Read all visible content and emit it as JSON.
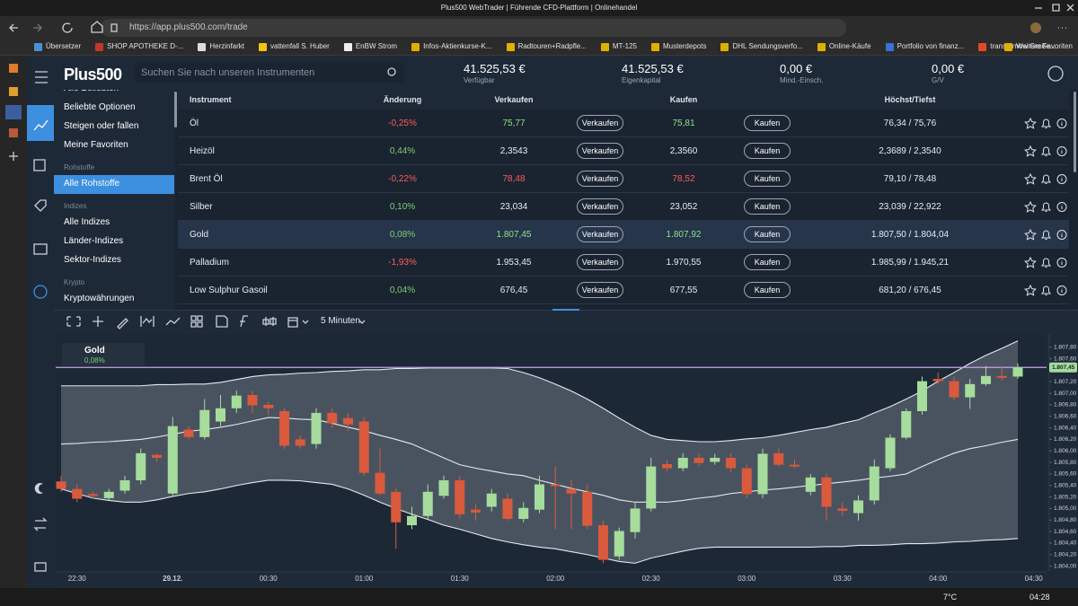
{
  "browser": {
    "tab_title": "Plus500 WebTrader | Führende CFD-Plattform | Onlinehandel",
    "url": "https://app.plus500.com/trade"
  },
  "bookmarks": [
    "Übersetzer",
    "SHOP APOTHEKE D-...",
    "Herzinfarkt",
    "vattenfall S. Huber",
    "EnBW Strom",
    "Infos-Aktienkurse-K...",
    "Radtouren+Radpfle...",
    "MT-125",
    "Musterdepots",
    "DHL Sendungsverfo...",
    "Online-Käufe",
    "Portfolio von finanz...",
    "transfernow Große...",
    "Weitere Favoriten"
  ],
  "app": {
    "logo": "Plus500",
    "search_placeholder": "Suchen Sie nach unseren Instrumenten",
    "stats": [
      {
        "value": "41.525,53 €",
        "label": "Verfügbar"
      },
      {
        "value": "41.525,53 €",
        "label": "Eigenkapital"
      },
      {
        "value": "0,00 €",
        "label": "Mind.-Einsch."
      },
      {
        "value": "0,00 €",
        "label": "G/V"
      }
    ]
  },
  "menu": {
    "top_items": [
      "Alle Beliebten",
      "Beliebte Optionen",
      "Steigen oder fallen",
      "Meine Favoriten"
    ],
    "groups": [
      {
        "title": "Rohstoffe",
        "items": [
          "Alle Rohstoffe"
        ]
      },
      {
        "title": "Indizes",
        "items": [
          "Alle Indizes",
          "Länder-Indizes",
          "Sektor-Indizes"
        ]
      },
      {
        "title": "Krypto",
        "items": [
          "Kryptowährungen"
        ]
      }
    ],
    "selected": "Alle Rohstoffe"
  },
  "table": {
    "columns": [
      "Instrument",
      "Änderung",
      "Verkaufen",
      "Kaufen",
      "Höchst/Tiefst"
    ],
    "sell_button": "Verkaufen",
    "buy_button": "Kaufen",
    "selected": "Gold",
    "up_color": "#7dcf74",
    "down_color": "#ff5c5c",
    "rows": [
      {
        "name": "Öl",
        "change": "-0,25%",
        "sell": "75,77",
        "buy": "75,81",
        "high_low": "76,34 / 75,76",
        "price_color": "#8fe388"
      },
      {
        "name": "Heizöl",
        "change": "0,44%",
        "sell": "2,3543",
        "buy": "2,3560",
        "high_low": "2,3689 / 2,3540",
        "price_color": "#e8ecf1"
      },
      {
        "name": "Brent Öl",
        "change": "-0,22%",
        "sell": "78,48",
        "buy": "78,52",
        "high_low": "79,10 / 78,48",
        "price_color": "#ff5c5c"
      },
      {
        "name": "Silber",
        "change": "0,10%",
        "sell": "23,034",
        "buy": "23,052",
        "high_low": "23,039 / 22,922",
        "price_color": "#e8ecf1"
      },
      {
        "name": "Gold",
        "change": "0,08%",
        "sell": "1.807,45",
        "buy": "1.807,92",
        "high_low": "1.807,50 / 1.804,04",
        "price_color": "#8fe388"
      },
      {
        "name": "Palladium",
        "change": "-1,93%",
        "sell": "1.953,45",
        "buy": "1.970,55",
        "high_low": "1.985,99 / 1.945,21",
        "price_color": "#e8ecf1"
      },
      {
        "name": "Low Sulphur Gasoil",
        "change": "0,04%",
        "sell": "676,45",
        "buy": "677,55",
        "high_low": "681,20 / 676,45",
        "price_color": "#e8ecf1"
      }
    ]
  },
  "chart_data": {
    "type": "candlestick",
    "title": "Gold",
    "subtitle": "0,08%",
    "interval": "5 Minuten",
    "up_color": "#a6dc9c",
    "down_color": "#d95a3c",
    "categories": [
      null,
      "22:30",
      null,
      null,
      null,
      null,
      null,
      "29.12.",
      null,
      null,
      null,
      null,
      null,
      "00:30",
      null,
      null,
      null,
      null,
      null,
      "01:00",
      null,
      null,
      null,
      null,
      null,
      "01:30",
      null,
      null,
      null,
      null,
      null,
      "02:00",
      null,
      null,
      null,
      null,
      null,
      "02:30",
      null,
      null,
      null,
      null,
      null,
      "03:00",
      null,
      null,
      null,
      null,
      null,
      "03:30",
      null,
      null,
      null,
      null,
      null,
      "04:00",
      null,
      null,
      null,
      null,
      null,
      "04:30"
    ],
    "open": [
      1805.47,
      1805.34,
      1805.25,
      1805.18,
      1805.31,
      1805.49,
      1805.93,
      1805.26,
      1806.37,
      1806.24,
      1806.51,
      1806.74,
      1806.97,
      1806.8,
      1806.69,
      1806.2,
      1806.12,
      1806.66,
      1806.57,
      1806.51,
      1805.62,
      1805.29,
      1804.71,
      1804.87,
      1805.22,
      1805.49,
      1804.98,
      1805.03,
      1805.17,
      1804.82,
      1804.98,
      1805.42,
      1805.34,
      1805.29,
      1804.71,
      1804.17,
      1804.59,
      1805.0,
      1805.77,
      1805.7,
      1805.88,
      1805.81,
      1805.88,
      1805.7,
      1805.25,
      1805.96,
      1805.76,
      1805.29,
      1805.54,
      1805.0,
      1804.92,
      1805.14,
      1805.7,
      1806.23,
      1806.69,
      1807.25,
      1807.21,
      1806.93,
      1807.16,
      1807.3,
      1807.29,
      null
    ],
    "high": [
      1805.57,
      1805.42,
      1805.29,
      1805.34,
      1805.57,
      1806.04,
      1805.96,
      1806.59,
      1806.43,
      1806.9,
      1806.97,
      1807.05,
      1807.05,
      1806.85,
      1806.74,
      1806.27,
      1806.74,
      1806.74,
      1806.66,
      1806.59,
      1806.04,
      1805.34,
      1805.03,
      1805.42,
      1805.57,
      1805.57,
      1805.07,
      1805.34,
      1805.26,
      1805.11,
      1805.57,
      1805.73,
      1805.49,
      1805.42,
      1804.79,
      1804.67,
      1805.11,
      1805.88,
      1805.85,
      1805.96,
      1805.96,
      1805.95,
      1805.96,
      1805.76,
      1806.04,
      1806.04,
      1805.85,
      1805.6,
      1805.6,
      1805.11,
      1805.23,
      1805.85,
      1806.29,
      1806.74,
      1807.29,
      1807.36,
      1807.29,
      1807.25,
      1807.47,
      1807.47,
      1807.52,
      null
    ],
    "low": [
      1805.29,
      1805.11,
      1805.17,
      1805.14,
      1805.26,
      1805.42,
      1805.81,
      1805.23,
      1806.2,
      1806.2,
      1806.43,
      1806.66,
      1806.66,
      1806.63,
      1806.04,
      1806.04,
      1806.04,
      1806.4,
      1806.35,
      1805.57,
      1805.23,
      1804.3,
      1804.64,
      1804.82,
      1805.17,
      1804.82,
      1804.79,
      1804.95,
      1804.79,
      1804.76,
      1804.92,
      1804.64,
      1804.64,
      1804.64,
      1804.05,
      1804.11,
      1804.48,
      1804.95,
      1805.65,
      1805.65,
      1805.73,
      1805.76,
      1805.63,
      1805.18,
      1805.18,
      1805.73,
      1805.7,
      1805.23,
      1804.79,
      1804.87,
      1804.79,
      1805.07,
      1805.65,
      1806.2,
      1806.63,
      1807.16,
      1806.88,
      1806.73,
      1807.13,
      1807.22,
      1807.25,
      null
    ],
    "close": [
      1805.34,
      1805.17,
      1805.22,
      1805.29,
      1805.49,
      1805.96,
      1805.88,
      1806.43,
      1806.24,
      1806.71,
      1806.74,
      1806.96,
      1806.79,
      1806.74,
      1806.09,
      1806.09,
      1806.66,
      1806.48,
      1806.46,
      1805.62,
      1805.26,
      1804.76,
      1804.87,
      1805.29,
      1805.49,
      1804.9,
      1804.93,
      1805.26,
      1804.82,
      1805.01,
      1805.42,
      1805.39,
      1805.26,
      1804.7,
      1804.11,
      1804.61,
      1805.0,
      1805.73,
      1805.7,
      1805.88,
      1805.79,
      1805.88,
      1805.7,
      1805.25,
      1805.95,
      1805.76,
      1805.73,
      1805.54,
      1805.03,
      1804.96,
      1805.14,
      1805.73,
      1806.23,
      1806.69,
      1807.21,
      1807.21,
      1806.93,
      1807.16,
      1807.3,
      1807.27,
      1807.45,
      null
    ],
    "bollinger": {
      "color": "#e6e9ee",
      "fill": "rgba(190,196,205,0.28)",
      "upper": [
        1807.13,
        1807.13,
        1807.13,
        1807.13,
        1807.13,
        1807.13,
        1807.15,
        1807.15,
        1807.16,
        1807.16,
        1807.19,
        1807.24,
        1807.29,
        1807.32,
        1807.33,
        1807.35,
        1807.36,
        1807.38,
        1807.39,
        1807.41,
        1807.41,
        1807.43,
        1807.43,
        1807.44,
        1807.44,
        1807.44,
        1807.44,
        1807.44,
        1807.43,
        1807.36,
        1807.27,
        1807.16,
        1807.04,
        1806.9,
        1806.74,
        1806.57,
        1806.41,
        1806.27,
        1806.2,
        1806.18,
        1806.16,
        1806.16,
        1806.18,
        1806.21,
        1806.23,
        1806.27,
        1806.32,
        1806.37,
        1806.41,
        1806.48,
        1806.54,
        1806.66,
        1806.77,
        1806.9,
        1807.04,
        1807.21,
        1807.36,
        1807.52,
        1807.66,
        1807.78,
        1807.91,
        null
      ],
      "middle": [
        1806.12,
        1806.13,
        1806.15,
        1806.16,
        1806.18,
        1806.2,
        1806.24,
        1806.29,
        1806.34,
        1806.37,
        1806.41,
        1806.46,
        1806.52,
        1806.58,
        1806.57,
        1806.55,
        1806.54,
        1806.48,
        1806.41,
        1806.35,
        1806.27,
        1806.2,
        1806.12,
        1806.0,
        1805.88,
        1805.76,
        1805.7,
        1805.65,
        1805.6,
        1805.57,
        1805.49,
        1805.42,
        1805.35,
        1805.29,
        1805.23,
        1805.15,
        1805.11,
        1805.11,
        1805.11,
        1805.14,
        1805.18,
        1805.21,
        1805.26,
        1805.29,
        1805.32,
        1805.34,
        1805.37,
        1805.4,
        1805.43,
        1805.46,
        1805.49,
        1805.53,
        1805.56,
        1805.6,
        1805.73,
        1805.85,
        1805.96,
        1806.04,
        1806.09,
        1806.15,
        1806.2,
        null
      ],
      "lower": [
        1805.34,
        1805.26,
        1805.18,
        1805.14,
        1805.11,
        1805.11,
        1805.15,
        1805.21,
        1805.26,
        1805.29,
        1805.34,
        1805.4,
        1805.45,
        1805.49,
        1805.49,
        1805.48,
        1805.45,
        1805.42,
        1805.34,
        1805.23,
        1805.11,
        1805.0,
        1804.9,
        1804.81,
        1804.71,
        1804.64,
        1804.56,
        1804.48,
        1804.42,
        1804.37,
        1804.33,
        1804.3,
        1804.25,
        1804.2,
        1804.14,
        1804.08,
        1804.05,
        1804.14,
        1804.2,
        1804.26,
        1804.31,
        1804.33,
        1804.33,
        1804.33,
        1804.33,
        1804.33,
        1804.33,
        1804.33,
        1804.34,
        1804.34,
        1804.36,
        1804.36,
        1804.37,
        1804.39,
        1804.39,
        1804.4,
        1804.42,
        1804.43,
        1804.45,
        1804.46,
        1804.48,
        null
      ]
    },
    "last_price": {
      "value": 1807.45,
      "label": "1.807,45"
    },
    "last_price_color": "#c9a2ea",
    "ylim": [
      1803.9,
      1808.03
    ],
    "yticks": [
      {
        "value": 1804.0,
        "label": "1.804,00"
      },
      {
        "value": 1804.2,
        "label": "1.804,20"
      },
      {
        "value": 1804.4,
        "label": "1.804,40"
      },
      {
        "value": 1804.6,
        "label": "1.804,60"
      },
      {
        "value": 1804.8,
        "label": "1.804,80"
      },
      {
        "value": 1805.0,
        "label": "1.805,00"
      },
      {
        "value": 1805.2,
        "label": "1.805,20"
      },
      {
        "value": 1805.4,
        "label": "1.805,40"
      },
      {
        "value": 1805.6,
        "label": "1.805,60"
      },
      {
        "value": 1805.8,
        "label": "1.805,80"
      },
      {
        "value": 1806.0,
        "label": "1.806,00"
      },
      {
        "value": 1806.2,
        "label": "1.806,20"
      },
      {
        "value": 1806.4,
        "label": "1.806,40"
      },
      {
        "value": 1806.6,
        "label": "1.806,60"
      },
      {
        "value": 1806.8,
        "label": "1.806,80"
      },
      {
        "value": 1807.0,
        "label": "1.807,00"
      },
      {
        "value": 1807.2,
        "label": "1.807,20"
      },
      {
        "value": 1807.4,
        "label": "1.807,40"
      },
      {
        "value": 1807.6,
        "label": "1.807,60"
      },
      {
        "value": 1807.8,
        "label": "1.807,80"
      }
    ],
    "grid": false
  },
  "taskbar": {
    "weather": "7°C",
    "time": "04:28"
  }
}
